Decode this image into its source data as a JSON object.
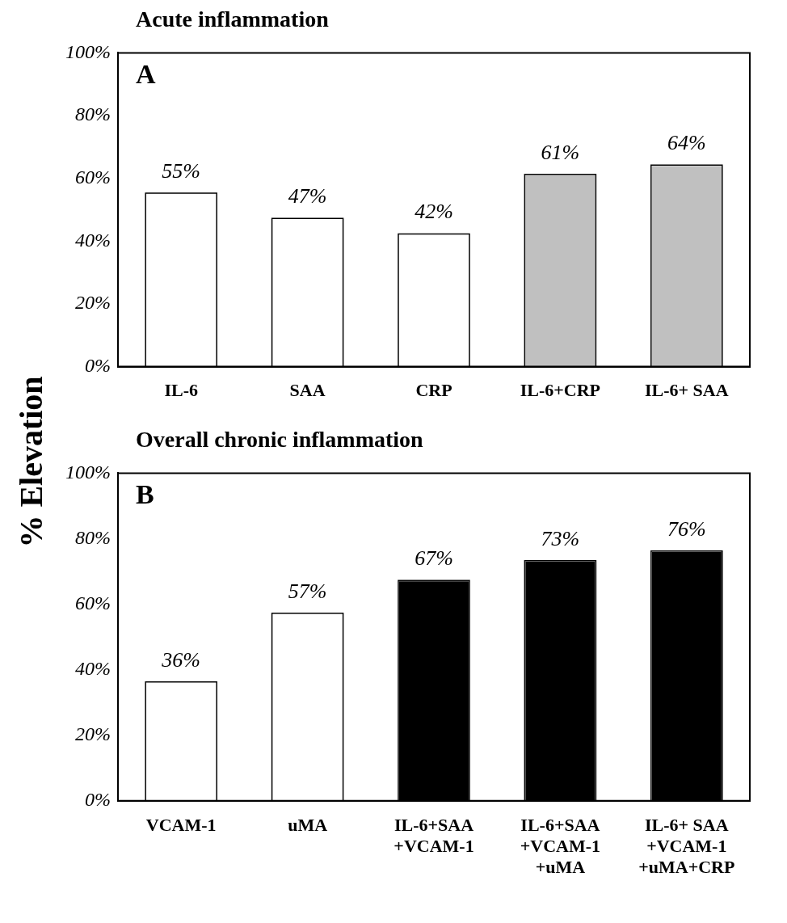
{
  "chart_data": [
    {
      "type": "bar",
      "title": "Acute inflammation",
      "ylabel": "% Elevation",
      "annotations": [
        "A"
      ],
      "categories": [
        "IL-6",
        "SAA",
        "CRP",
        "IL-6+CRP",
        "IL-6+ SAA"
      ],
      "values": [
        55,
        47,
        42,
        61,
        64
      ],
      "colors": [
        "#ffffff",
        "#ffffff",
        "#ffffff",
        "#c0c0c0",
        "#c0c0c0"
      ],
      "ylim": [
        0,
        100
      ],
      "yticks": [
        {
          "value": 0,
          "label": "0%"
        },
        {
          "value": 20,
          "label": "20%"
        },
        {
          "value": 40,
          "label": "40%"
        },
        {
          "value": 60,
          "label": "60%"
        },
        {
          "value": 80,
          "label": "80%"
        },
        {
          "value": 100,
          "label": "100%"
        }
      ],
      "value_labels": [
        "55%",
        "47%",
        "42%",
        "61%",
        "64%"
      ],
      "grid": false,
      "legend": false
    },
    {
      "type": "bar",
      "title": "Overall chronic inflammation",
      "annotations": [
        "B"
      ],
      "categories": [
        "VCAM-1",
        "uMA",
        "IL-6+SAA\n+VCAM-1",
        "IL-6+SAA\n+VCAM-1\n+uMA",
        "IL-6+ SAA\n+VCAM-1\n+uMA+CRP"
      ],
      "values": [
        36,
        57,
        67,
        73,
        76
      ],
      "colors": [
        "#ffffff",
        "#ffffff",
        "#000000",
        "#000000",
        "#000000"
      ],
      "ylim": [
        0,
        100
      ],
      "yticks": [
        {
          "value": 0,
          "label": "0%"
        },
        {
          "value": 20,
          "label": "20%"
        },
        {
          "value": 40,
          "label": "40%"
        },
        {
          "value": 60,
          "label": "60%"
        },
        {
          "value": 80,
          "label": "80%"
        },
        {
          "value": 100,
          "label": "100%"
        }
      ],
      "value_labels": [
        "36%",
        "57%",
        "67%",
        "73%",
        "76%"
      ],
      "grid": false,
      "legend": false
    }
  ]
}
